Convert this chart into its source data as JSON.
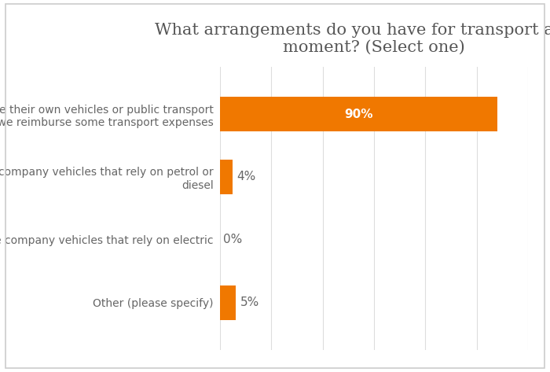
{
  "title": "What arrangements do you have for transport at the\nmoment? (Select one)",
  "categories": [
    "Staff use their own vehicles or public transport\nand we reimburse some transport expenses",
    "Staff use company vehicles that rely on petrol or\ndiesel",
    "Staff use company vehicles that rely on electric",
    "Other (please specify)"
  ],
  "values": [
    90,
    4,
    0,
    5
  ],
  "labels": [
    "90%",
    "4%",
    "0%",
    "5%"
  ],
  "bar_color": "#F07800",
  "label_color_inside": "#FFFFFF",
  "label_color_outside": "#808080",
  "title_color": "#555555",
  "ylabel_color": "#666666",
  "background_color": "#FFFFFF",
  "grid_color": "#DDDDDD",
  "bar_height": 0.55,
  "xlim": [
    0,
    100
  ],
  "title_fontsize": 15,
  "label_fontsize": 11,
  "tick_fontsize": 10,
  "border_color": "#CCCCCC"
}
